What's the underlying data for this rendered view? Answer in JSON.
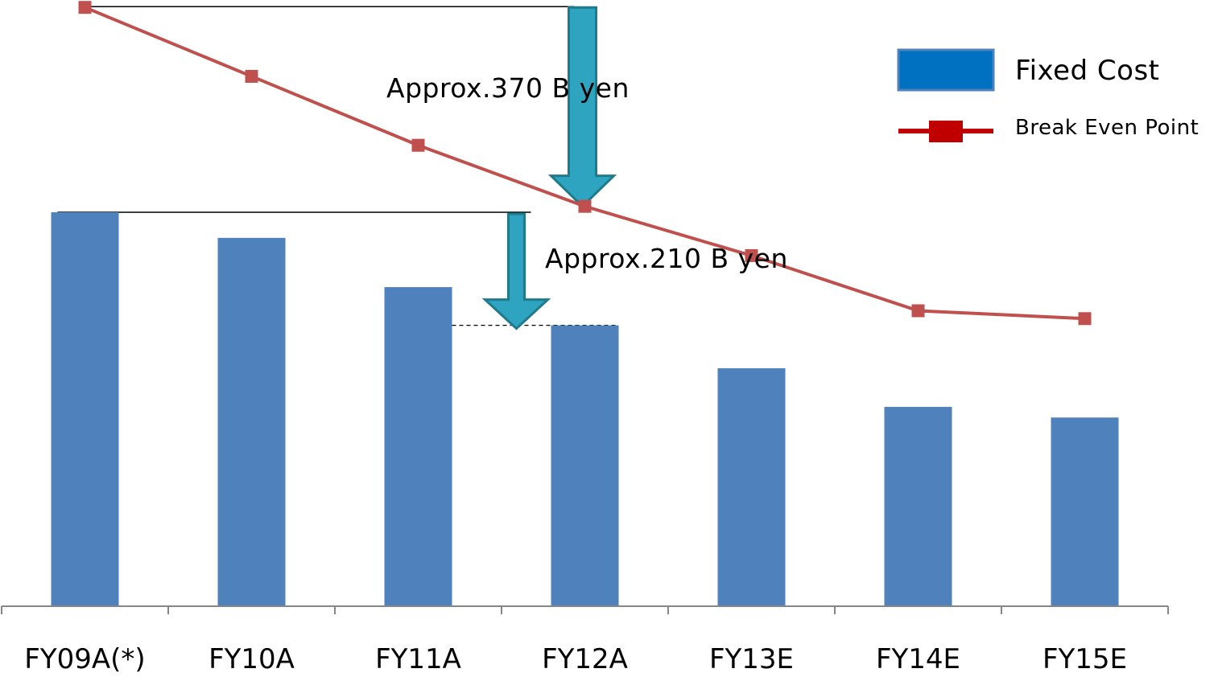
{
  "chart_data": {
    "type": "bar",
    "categories": [
      "FY09A(*)",
      "FY10A",
      "FY11A",
      "FY12A",
      "FY13E",
      "FY14E",
      "FY15E"
    ],
    "series": [
      {
        "name": "Fixed Cost",
        "type": "bar",
        "values": [
          100,
          93.5,
          81,
          71.3,
          60.4,
          50.6,
          47.9
        ]
      },
      {
        "name": "Break Even Point",
        "type": "line",
        "values": [
          152,
          134.5,
          117,
          101.5,
          89,
          75,
          73
        ]
      }
    ],
    "ylim": [
      0,
      155
    ],
    "axes_visible": {
      "x": true,
      "y": false
    },
    "grid": false,
    "legend_position": "top-right",
    "colors": {
      "bar": "#4F81BD",
      "line": "#C0504D",
      "legend_bar": "#0070C0",
      "legend_line": "#C00000",
      "arrow_fill": "#2EA4C1",
      "arrow_stroke": "#1F7A8C"
    },
    "annotations": [
      {
        "text": "Approx.370 B yen",
        "from_series": "Break Even Point",
        "from_index": 0,
        "to_index": 3
      },
      {
        "text": "Approx.210 B yen",
        "from_series": "Fixed Cost",
        "from_index": 0,
        "to_index": 3
      }
    ]
  }
}
